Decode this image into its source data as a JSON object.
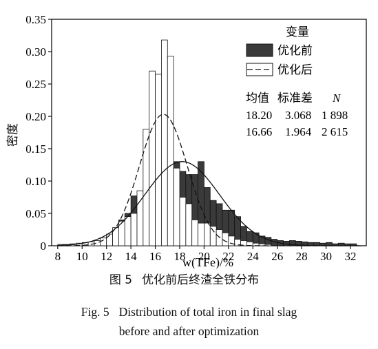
{
  "chart_data": {
    "type": "histogram",
    "xlabel": "w(TFe)/%",
    "ylabel": "密度",
    "xlim": [
      7.5,
      33.3
    ],
    "ylim": [
      0,
      0.35
    ],
    "x_ticks": [
      8,
      10,
      12,
      14,
      16,
      18,
      20,
      22,
      24,
      26,
      28,
      30,
      32
    ],
    "y_ticks": [
      "0",
      "0.05",
      "0.10",
      "0.15",
      "0.20",
      "0.25",
      "0.30",
      "0.35"
    ],
    "y_tick_values": [
      0,
      0.05,
      0.1,
      0.15,
      0.2,
      0.25,
      0.3,
      0.35
    ],
    "bin_width": 0.5,
    "legend": {
      "title": "变量",
      "entries": [
        {
          "label": "优化前",
          "style": "dark-fill"
        },
        {
          "label": "优化后",
          "style": "dashed"
        }
      ],
      "placement": "top-right"
    },
    "stats_table": {
      "headers": [
        "均值",
        "标准差",
        "N"
      ],
      "rows": [
        [
          "18.20",
          "3.068",
          "1 898"
        ],
        [
          "16.66",
          "1.964",
          "2 615"
        ]
      ]
    },
    "series": [
      {
        "name": "优化前",
        "mean": 18.2,
        "std": 3.068,
        "fill": "#3a3a3a",
        "bins_start": [
          11,
          11.5,
          12,
          12.5,
          13,
          13.5,
          14,
          14.5,
          15,
          15.5,
          16,
          16.5,
          17,
          17.5,
          18,
          18.5,
          19,
          19.5,
          20,
          20.5,
          21,
          21.5,
          22,
          22.5,
          23,
          23.5,
          24,
          24.5,
          25,
          25.5,
          26,
          26.5,
          27,
          27.5,
          28,
          28.5,
          29,
          29.5,
          30,
          30.5,
          31,
          31.5,
          32
        ],
        "values": [
          0.003,
          0.005,
          0.015,
          0.022,
          0.04,
          0.05,
          0.077,
          0.06,
          0.05,
          0.045,
          0.04,
          0.035,
          0.06,
          0.13,
          0.115,
          0.11,
          0.11,
          0.13,
          0.09,
          0.07,
          0.065,
          0.055,
          0.055,
          0.045,
          0.03,
          0.022,
          0.02,
          0.015,
          0.013,
          0.01,
          0.008,
          0.007,
          0.008,
          0.007,
          0.006,
          0.005,
          0.005,
          0.004,
          0.005,
          0.003,
          0.004,
          0.003,
          0.003
        ]
      },
      {
        "name": "优化后",
        "mean": 16.66,
        "std": 1.964,
        "fill": "#ffffff",
        "bins_start": [
          8,
          8.5,
          9,
          9.5,
          10,
          10.5,
          11,
          11.5,
          12,
          12.5,
          13,
          13.5,
          14,
          14.5,
          15,
          15.5,
          16,
          16.5,
          17,
          17.5,
          18,
          18.5,
          19,
          19.5,
          20,
          20.5,
          21,
          21.5,
          22,
          22.5,
          23,
          23.5,
          24,
          24.5,
          25
        ],
        "values": [
          0.002,
          0.002,
          0.003,
          0.004,
          0.005,
          0.006,
          0.008,
          0.012,
          0.018,
          0.028,
          0.038,
          0.045,
          0.05,
          0.085,
          0.18,
          0.27,
          0.265,
          0.318,
          0.293,
          0.12,
          0.075,
          0.065,
          0.04,
          0.035,
          0.035,
          0.03,
          0.025,
          0.02,
          0.015,
          0.01,
          0.008,
          0.006,
          0.004,
          0.003,
          0.002
        ]
      }
    ]
  },
  "caption": {
    "cn_label": "图 5",
    "cn_text": "优化前后终渣全铁分布",
    "en_label": "Fig. 5",
    "en_line1": "Distribution of total iron in final slag",
    "en_line2": "before and after optimization"
  }
}
